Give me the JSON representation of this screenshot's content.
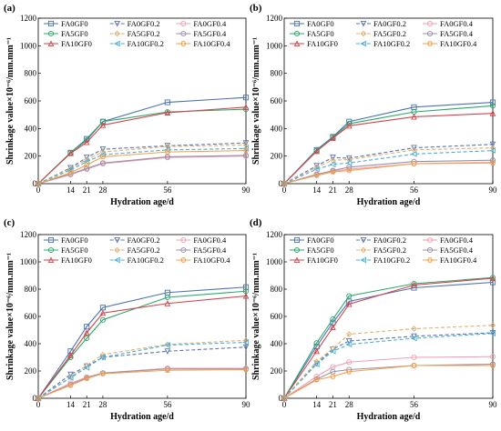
{
  "figure": {
    "xlabel": "Hydration age/d",
    "ylabel": "Shrinkage value×10⁻⁶/mm.mm⁻¹",
    "x_ticks": [
      0,
      14,
      21,
      28,
      56,
      90
    ],
    "y_ticks": [
      0,
      200,
      400,
      600,
      800,
      1000,
      1200
    ],
    "series_styles": [
      {
        "name": "FA0GF0",
        "color": "#4a72b0",
        "dash": false,
        "marker": "square"
      },
      {
        "name": "FA0GF0.2",
        "color": "#5b74b3",
        "dash": true,
        "marker": "triangle-down"
      },
      {
        "name": "FA0GF0.4",
        "color": "#f0a0b4",
        "dash": false,
        "marker": "circle"
      },
      {
        "name": "FA5GF0",
        "color": "#2aa76a",
        "dash": false,
        "marker": "circle"
      },
      {
        "name": "FA5GF0.2",
        "color": "#e0b070",
        "dash": true,
        "marker": "diamond"
      },
      {
        "name": "FA5GF0.4",
        "color": "#9b8fa6",
        "dash": false,
        "marker": "circle"
      },
      {
        "name": "FA10GF0",
        "color": "#d4434b",
        "dash": false,
        "marker": "triangle-up"
      },
      {
        "name": "FA10GF0.2",
        "color": "#4aaed8",
        "dash": true,
        "marker": "triangle-left"
      },
      {
        "name": "FA10GF0.4",
        "color": "#f2a04a",
        "dash": false,
        "marker": "hexagon"
      }
    ]
  },
  "chart_data": [
    {
      "type": "line",
      "panel": "(a)",
      "x": [
        0,
        14,
        21,
        28,
        56,
        90
      ],
      "xlim": [
        0,
        90
      ],
      "ylim": [
        0,
        1200
      ],
      "xlabel": "Hydration age/d",
      "ylabel": "Shrinkage value×10⁻⁶/mm.mm⁻¹",
      "series": [
        {
          "name": "FA0GF0",
          "values": [
            0,
            225,
            325,
            450,
            590,
            625
          ]
        },
        {
          "name": "FA0GF0.2",
          "values": [
            0,
            115,
            190,
            250,
            275,
            295
          ]
        },
        {
          "name": "FA0GF0.4",
          "values": [
            0,
            65,
            105,
            145,
            190,
            200
          ]
        },
        {
          "name": "FA5GF0",
          "values": [
            0,
            225,
            315,
            450,
            520,
            540
          ]
        },
        {
          "name": "FA5GF0.2",
          "values": [
            0,
            110,
            175,
            230,
            270,
            280
          ]
        },
        {
          "name": "FA5GF0.4",
          "values": [
            0,
            70,
            110,
            150,
            195,
            205
          ]
        },
        {
          "name": "FA10GF0",
          "values": [
            0,
            220,
            300,
            425,
            515,
            555
          ]
        },
        {
          "name": "FA10GF0.2",
          "values": [
            0,
            100,
            160,
            210,
            245,
            255
          ]
        },
        {
          "name": "FA10GF0.4",
          "values": [
            0,
            80,
            135,
            195,
            230,
            240
          ]
        }
      ]
    },
    {
      "type": "line",
      "panel": "(b)",
      "x": [
        0,
        14,
        21,
        28,
        56,
        90
      ],
      "xlim": [
        0,
        90
      ],
      "ylim": [
        0,
        1200
      ],
      "xlabel": "Hydration age/d",
      "ylabel": "Shrinkage value×10⁻⁶/mm.mm⁻¹",
      "series": [
        {
          "name": "FA0GF0",
          "values": [
            0,
            245,
            340,
            450,
            555,
            590
          ]
        },
        {
          "name": "FA0GF0.2",
          "values": [
            0,
            130,
            190,
            185,
            260,
            285
          ]
        },
        {
          "name": "FA0GF0.4",
          "values": [
            0,
            70,
            90,
            105,
            145,
            155
          ]
        },
        {
          "name": "FA5GF0",
          "values": [
            0,
            240,
            335,
            435,
            520,
            565
          ]
        },
        {
          "name": "FA5GF0.2",
          "values": [
            0,
            120,
            170,
            175,
            245,
            260
          ]
        },
        {
          "name": "FA5GF0.4",
          "values": [
            0,
            65,
            95,
            120,
            160,
            170
          ]
        },
        {
          "name": "FA10GF0",
          "values": [
            0,
            235,
            330,
            420,
            485,
            510
          ]
        },
        {
          "name": "FA10GF0.2",
          "values": [
            0,
            105,
            140,
            150,
            215,
            240
          ]
        },
        {
          "name": "FA10GF0.4",
          "values": [
            0,
            60,
            85,
            95,
            145,
            150
          ]
        }
      ]
    },
    {
      "type": "line",
      "panel": "(c)",
      "x": [
        0,
        14,
        21,
        28,
        56,
        90
      ],
      "xlim": [
        0,
        90
      ],
      "ylim": [
        0,
        1200
      ],
      "xlabel": "Hydration age/d",
      "ylabel": "Shrinkage value×10⁻⁶/mm.mm⁻¹",
      "series": [
        {
          "name": "FA0GF0",
          "values": [
            0,
            345,
            525,
            665,
            775,
            815
          ]
        },
        {
          "name": "FA0GF0.2",
          "values": [
            0,
            175,
            235,
            300,
            345,
            375
          ]
        },
        {
          "name": "FA0GF0.4",
          "values": [
            0,
            110,
            155,
            185,
            220,
            220
          ]
        },
        {
          "name": "FA5GF0",
          "values": [
            0,
            300,
            440,
            575,
            740,
            785
          ]
        },
        {
          "name": "FA5GF0.2",
          "values": [
            0,
            155,
            240,
            320,
            395,
            425
          ]
        },
        {
          "name": "FA5GF0.4",
          "values": [
            0,
            100,
            150,
            185,
            215,
            215
          ]
        },
        {
          "name": "FA10GF0",
          "values": [
            0,
            315,
            480,
            625,
            695,
            750
          ]
        },
        {
          "name": "FA10GF0.2",
          "values": [
            0,
            150,
            225,
            300,
            390,
            410
          ]
        },
        {
          "name": "FA10GF0.4",
          "values": [
            0,
            95,
            145,
            180,
            205,
            210
          ]
        }
      ]
    },
    {
      "type": "line",
      "panel": "(d)",
      "x": [
        0,
        14,
        21,
        28,
        56,
        90
      ],
      "xlim": [
        0,
        90
      ],
      "ylim": [
        0,
        1200
      ],
      "xlabel": "Hydration age/d",
      "ylabel": "Shrinkage value×10⁻⁶/mm.mm⁻¹",
      "series": [
        {
          "name": "FA0GF0",
          "values": [
            0,
            380,
            555,
            710,
            810,
            850
          ]
        },
        {
          "name": "FA0GF0.2",
          "values": [
            0,
            255,
            360,
            420,
            455,
            480
          ]
        },
        {
          "name": "FA0GF0.4",
          "values": [
            0,
            160,
            230,
            265,
            300,
            305
          ]
        },
        {
          "name": "FA5GF0",
          "values": [
            0,
            405,
            580,
            750,
            840,
            885
          ]
        },
        {
          "name": "FA5GF0.2",
          "values": [
            0,
            270,
            365,
            470,
            510,
            535
          ]
        },
        {
          "name": "FA5GF0.4",
          "values": [
            0,
            140,
            195,
            210,
            240,
            250
          ]
        },
        {
          "name": "FA10GF0",
          "values": [
            0,
            345,
            520,
            690,
            830,
            880
          ]
        },
        {
          "name": "FA10GF0.2",
          "values": [
            0,
            250,
            345,
            395,
            440,
            475
          ]
        },
        {
          "name": "FA10GF0.4",
          "values": [
            0,
            135,
            160,
            195,
            240,
            240
          ]
        }
      ]
    }
  ]
}
